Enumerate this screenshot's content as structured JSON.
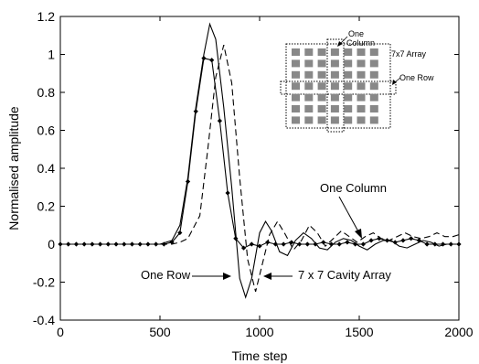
{
  "chart_data": {
    "type": "line",
    "title": "",
    "xlabel": "Time step",
    "ylabel": "Normalised amplitude",
    "xlim": [
      0,
      2000
    ],
    "ylim": [
      -0.4,
      1.2
    ],
    "x_ticks": [
      "0",
      "500",
      "1000",
      "1500",
      "2000"
    ],
    "y_ticks": [
      "-0.4",
      "-0.2",
      "0",
      "0.2",
      "0.4",
      "0.6",
      "0.8",
      "1",
      "1.2"
    ],
    "grid": false,
    "series": [
      {
        "name": "One Row",
        "style": "solid-diamond",
        "points": [
          [
            0,
            0
          ],
          [
            40,
            0
          ],
          [
            80,
            0
          ],
          [
            120,
            0
          ],
          [
            160,
            0
          ],
          [
            200,
            0
          ],
          [
            240,
            0
          ],
          [
            280,
            0
          ],
          [
            320,
            0
          ],
          [
            360,
            0
          ],
          [
            400,
            0
          ],
          [
            440,
            0
          ],
          [
            480,
            0
          ],
          [
            520,
            0
          ],
          [
            560,
            0.01
          ],
          [
            600,
            0.06
          ],
          [
            640,
            0.33
          ],
          [
            680,
            0.7
          ],
          [
            720,
            0.98
          ],
          [
            760,
            0.97
          ],
          [
            800,
            0.65
          ],
          [
            840,
            0.27
          ],
          [
            880,
            0.03
          ],
          [
            920,
            -0.02
          ],
          [
            960,
            0
          ],
          [
            1000,
            -0.01
          ],
          [
            1040,
            0.01
          ],
          [
            1080,
            0
          ],
          [
            1120,
            0
          ],
          [
            1160,
            0.01
          ],
          [
            1200,
            0
          ],
          [
            1240,
            0
          ],
          [
            1280,
            0
          ],
          [
            1320,
            0.01
          ],
          [
            1360,
            0
          ],
          [
            1400,
            0
          ],
          [
            1440,
            0.01
          ],
          [
            1480,
            0
          ],
          [
            1520,
            0
          ],
          [
            1560,
            0.02
          ],
          [
            1600,
            0.03
          ],
          [
            1640,
            0.02
          ],
          [
            1680,
            0.01
          ],
          [
            1720,
            0.02
          ],
          [
            1760,
            0.03
          ],
          [
            1800,
            0.02
          ],
          [
            1840,
            0
          ],
          [
            1880,
            0
          ],
          [
            1920,
            0
          ],
          [
            1960,
            0
          ],
          [
            2000,
            0
          ]
        ]
      },
      {
        "name": "One Column",
        "style": "solid",
        "points": [
          [
            0,
            0
          ],
          [
            500,
            0
          ],
          [
            560,
            0.02
          ],
          [
            600,
            0.1
          ],
          [
            640,
            0.35
          ],
          [
            680,
            0.72
          ],
          [
            720,
            1.0
          ],
          [
            750,
            1.16
          ],
          [
            780,
            1.08
          ],
          [
            820,
            0.72
          ],
          [
            860,
            0.3
          ],
          [
            900,
            -0.18
          ],
          [
            930,
            -0.28
          ],
          [
            960,
            -0.18
          ],
          [
            1000,
            0.06
          ],
          [
            1030,
            0.12
          ],
          [
            1060,
            0.07
          ],
          [
            1100,
            -0.04
          ],
          [
            1140,
            -0.06
          ],
          [
            1180,
            0.02
          ],
          [
            1220,
            0.06
          ],
          [
            1260,
            0.03
          ],
          [
            1300,
            -0.02
          ],
          [
            1340,
            -0.03
          ],
          [
            1380,
            0.01
          ],
          [
            1420,
            0.03
          ],
          [
            1460,
            0.02
          ],
          [
            1500,
            -0.01
          ],
          [
            1540,
            -0.03
          ],
          [
            1580,
            0
          ],
          [
            1620,
            0.02
          ],
          [
            1660,
            0.02
          ],
          [
            1700,
            -0.01
          ],
          [
            1740,
            -0.02
          ],
          [
            1780,
            0
          ],
          [
            1820,
            0.02
          ],
          [
            1860,
            0.01
          ],
          [
            1900,
            -0.01
          ],
          [
            1940,
            0
          ],
          [
            2000,
            0
          ]
        ]
      },
      {
        "name": "7 x 7 Cavity Array",
        "style": "dashed",
        "points": [
          [
            0,
            0
          ],
          [
            560,
            0
          ],
          [
            600,
            0.01
          ],
          [
            640,
            0.03
          ],
          [
            700,
            0.15
          ],
          [
            740,
            0.5
          ],
          [
            780,
            0.88
          ],
          [
            820,
            1.05
          ],
          [
            860,
            0.85
          ],
          [
            900,
            0.35
          ],
          [
            940,
            -0.08
          ],
          [
            980,
            -0.25
          ],
          [
            1010,
            -0.12
          ],
          [
            1050,
            0.05
          ],
          [
            1090,
            0.12
          ],
          [
            1130,
            0.05
          ],
          [
            1170,
            -0.03
          ],
          [
            1210,
            0.02
          ],
          [
            1250,
            0.1
          ],
          [
            1290,
            0.06
          ],
          [
            1330,
            -0.01
          ],
          [
            1370,
            0.03
          ],
          [
            1410,
            0.07
          ],
          [
            1450,
            0.04
          ],
          [
            1490,
            0.01
          ],
          [
            1530,
            0.04
          ],
          [
            1570,
            0.06
          ],
          [
            1610,
            0.03
          ],
          [
            1650,
            0.02
          ],
          [
            1690,
            0.04
          ],
          [
            1730,
            0.06
          ],
          [
            1770,
            0.04
          ],
          [
            1810,
            0.03
          ],
          [
            1850,
            0.04
          ],
          [
            1890,
            0.06
          ],
          [
            1930,
            0.04
          ],
          [
            1970,
            0.04
          ],
          [
            2000,
            0.05
          ]
        ]
      }
    ],
    "annotations": [
      {
        "text": "One Column",
        "at": [
          1560,
          0.22
        ]
      },
      {
        "text": "One Row",
        "at": [
          580,
          -0.14
        ]
      },
      {
        "text": "7 x 7 Cavity Array",
        "at": [
          1300,
          -0.14
        ]
      }
    ],
    "inset": {
      "labels": {
        "one": "One",
        "column": "Column",
        "array": "7x7 Array",
        "row": "One Row"
      },
      "grid_size": 7,
      "cell_color": "#888888"
    }
  }
}
